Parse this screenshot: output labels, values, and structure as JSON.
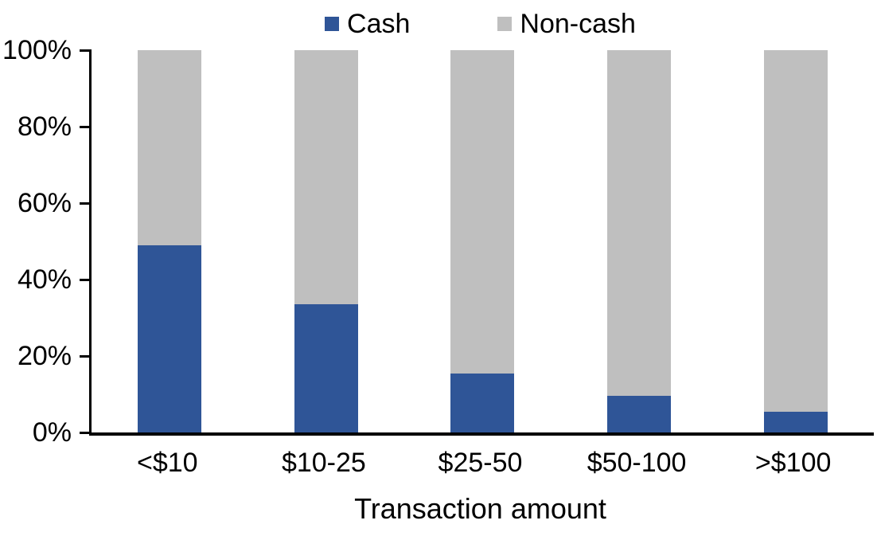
{
  "chart_data": {
    "type": "bar",
    "stacked": true,
    "percent_stacked": true,
    "title": "",
    "xlabel": "Transaction amount",
    "ylabel": "",
    "categories": [
      "<$10",
      "$10-25",
      "$25-50",
      "$50-100",
      ">$100"
    ],
    "series": [
      {
        "name": "Cash",
        "color": "#2F5597",
        "values": [
          49,
          33.5,
          15.5,
          9.5,
          5.5
        ]
      },
      {
        "name": "Non-cash",
        "color": "#BFBFBF",
        "values": [
          51,
          66.5,
          84.5,
          90.5,
          94.5
        ]
      }
    ],
    "ylim": [
      0,
      100
    ],
    "yticks": [
      0,
      20,
      40,
      60,
      80,
      100
    ],
    "ytick_labels": [
      "0%",
      "20%",
      "40%",
      "60%",
      "80%",
      "100%"
    ],
    "grid": false,
    "legend_position": "top-center",
    "axis_color": "#000000",
    "text_color": "#000000",
    "background_color": "#FFFFFF"
  }
}
